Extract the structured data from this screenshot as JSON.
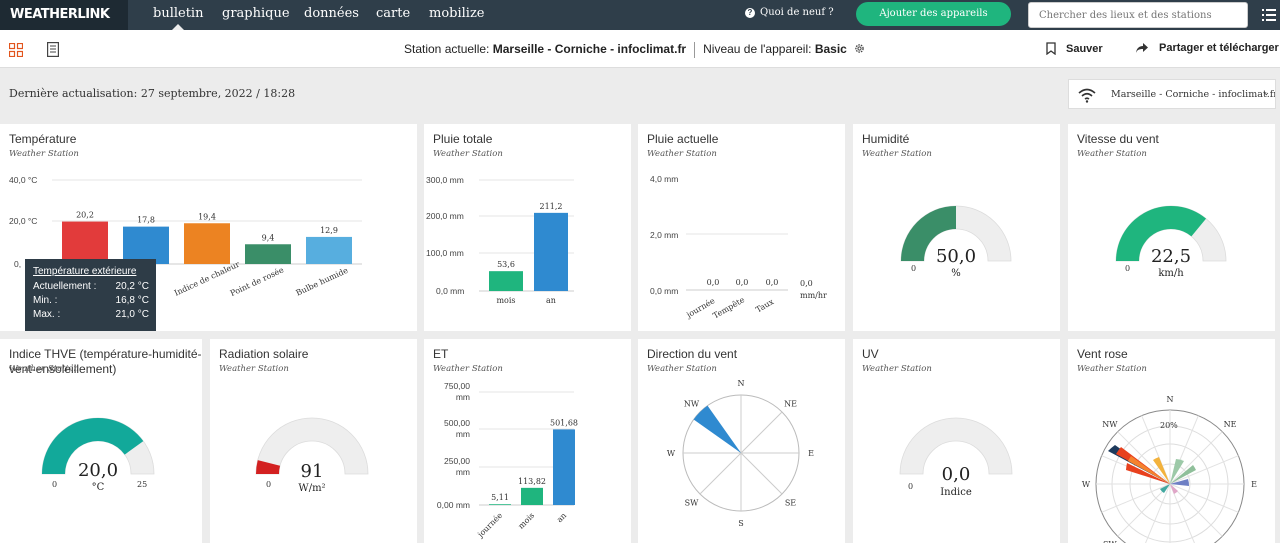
{
  "nav": {
    "logo": "WEATHERLINK",
    "tabs": [
      {
        "label": "bulletin",
        "active": true
      },
      {
        "label": "graphique"
      },
      {
        "label": "données"
      },
      {
        "label": "carte"
      },
      {
        "label": "mobilize"
      }
    ],
    "whats_new": "Quoi de neuf ?",
    "add_devices": "Ajouter des appareils",
    "search_placeholder": "Chercher des lieux et des stations"
  },
  "subbar": {
    "station_label": "Station actuelle:",
    "station_name": "Marseille - Corniche - infoclimat.fr",
    "level_label": "Niveau de l'appareil:",
    "level_value": "Basic",
    "save": "Sauver",
    "share": "Partager et télécharger"
  },
  "last_update": "Dernière actualisation: 27 septembre, 2022 / 18:28",
  "station_select": "Marseille - Corniche - infoclimat.fr",
  "colors": {
    "green": "#1fb57e",
    "blue": "#2f8ad0",
    "red": "#e23b3b",
    "orange": "#ec8322",
    "darkgreen": "#3a8e68",
    "lightblue": "#57aedf",
    "teal": "#12a99a",
    "gaugegray": "#eeeeee",
    "darkred": "#d32020"
  },
  "cards": {
    "temperature": {
      "title": "Température",
      "subtitle": "Weather Station",
      "y_ticks": [
        "40,0 °C",
        "20,0 °C",
        "0,"
      ],
      "bars": [
        {
          "label": "20,2",
          "cat": "",
          "value": 20.2,
          "color": "#e23b3b"
        },
        {
          "label": "17,8",
          "cat": "",
          "value": 17.8,
          "color": "#2f8ad0"
        },
        {
          "label": "19,4",
          "cat": "Indice de chaleur",
          "value": 19.4,
          "color": "#ec8322"
        },
        {
          "label": "9,4",
          "cat": "Point de rosée",
          "value": 9.4,
          "color": "#3a8e68"
        },
        {
          "label": "12,9",
          "cat": "Bulbe humide",
          "value": 12.9,
          "color": "#57aedf"
        }
      ],
      "tooltip": {
        "title": "Température extérieure",
        "rows": [
          {
            "k": "Actuellement :",
            "v": "20,2 °C"
          },
          {
            "k": "Min. :",
            "v": "16,8 °C"
          },
          {
            "k": "Max. :",
            "v": "21,0 °C"
          }
        ]
      }
    },
    "rain_total": {
      "title": "Pluie totale",
      "subtitle": "Weather Station",
      "y_ticks": [
        "300,0 mm",
        "200,0 mm",
        "100,0 mm",
        "0,0 mm"
      ],
      "bars": [
        {
          "label": "53,6",
          "cat": "mois",
          "value": 53.6,
          "color": "#1fb57e"
        },
        {
          "label": "211,2",
          "cat": "an",
          "value": 211.2,
          "color": "#2f8ad0"
        }
      ]
    },
    "rain_now": {
      "title": "Pluie actuelle",
      "subtitle": "Weather Station",
      "y_ticks": [
        "4,0 mm",
        "2,0 mm",
        "0,0 mm"
      ],
      "bars": [
        {
          "label": "0,0",
          "cat": "journée"
        },
        {
          "label": "0,0",
          "cat": "Tempête"
        },
        {
          "label": "0,0",
          "cat": "Taux"
        }
      ],
      "rate_value": "0,0",
      "rate_unit": "mm/hr"
    },
    "humidity": {
      "title": "Humidité",
      "subtitle": "Weather Station",
      "value": "50,0",
      "unit": "%",
      "min": "0",
      "fraction": 0.5
    },
    "wind_speed": {
      "title": "Vitesse du vent",
      "subtitle": "Weather Station",
      "value": "22,5",
      "unit": "km/h",
      "min": "0",
      "fraction": 0.72
    },
    "thsw": {
      "title": "Indice THVE (température-humidité-vent-ensoleillement)",
      "subtitle": "Weather Station",
      "value": "20,0",
      "unit": "°C",
      "min": "0",
      "max": "25",
      "fraction": 0.8
    },
    "solar": {
      "title": "Radiation solaire",
      "subtitle": "Weather Station",
      "value": "91",
      "unit": "W/m²",
      "min": "0",
      "fraction": 0.08
    },
    "et": {
      "title": "ET",
      "subtitle": "Weather Station",
      "y_ticks": [
        [
          "750,00",
          "mm"
        ],
        [
          "500,00",
          "mm"
        ],
        [
          "250,00",
          "mm"
        ],
        [
          "0,00 mm"
        ]
      ],
      "bars": [
        {
          "label": "5,11",
          "cat": "journée",
          "value": 5.11,
          "color": "#1fb57e"
        },
        {
          "label": "113,82",
          "cat": "mois",
          "value": 113.82,
          "color": "#1fb57e"
        },
        {
          "label": "501,68",
          "cat": "an",
          "value": 501.68,
          "color": "#2f8ad0"
        }
      ]
    },
    "wind_dir": {
      "title": "Direction du vent",
      "subtitle": "Weather Station",
      "labels": [
        "N",
        "NE",
        "E",
        "SE",
        "S",
        "SW",
        "W",
        "NW"
      ],
      "direction_deg": 315
    },
    "uv": {
      "title": "UV",
      "subtitle": "Weather Station",
      "value": "0,0",
      "unit": "Indice",
      "min": "0",
      "fraction": 0
    },
    "wind_rose": {
      "title": "Vent rose",
      "subtitle": "Weather Station",
      "labels": [
        "N",
        "NE",
        "E",
        "NW",
        "W",
        "SW"
      ],
      "ring_label": "20%"
    }
  }
}
